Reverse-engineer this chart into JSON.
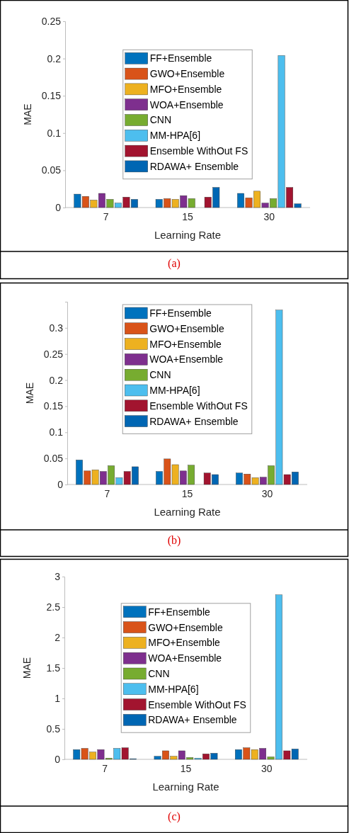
{
  "chart_data": [
    {
      "type": "bar",
      "xlabel": "Learning Rate",
      "ylabel": "MAE",
      "categories": [
        "7",
        "15",
        "30"
      ],
      "ylim": [
        0,
        0.25
      ],
      "yticks": [
        0,
        0.05,
        0.1,
        0.15,
        0.2,
        0.25
      ],
      "legend": "center",
      "annotations": [
        "(a)"
      ],
      "series": [
        {
          "name": "FF+Ensemble",
          "color": "#0072bd",
          "values": [
            0.018,
            0.011,
            0.019
          ]
        },
        {
          "name": "GWO+Ensemble",
          "color": "#d95319",
          "values": [
            0.015,
            0.012,
            0.013
          ]
        },
        {
          "name": "MFO+Ensemble",
          "color": "#edb120",
          "values": [
            0.01,
            0.011,
            0.022
          ]
        },
        {
          "name": "WOA+Ensemble",
          "color": "#7e2f8e",
          "values": [
            0.019,
            0.016,
            0.006
          ]
        },
        {
          "name": "CNN",
          "color": "#77ac30",
          "values": [
            0.011,
            0.012,
            0.012
          ]
        },
        {
          "name": "MM-HPA[6]",
          "color": "#4dbeee",
          "values": [
            0.006,
            null,
            0.204
          ]
        },
        {
          "name": "Ensemble WithOut FS",
          "color": "#a2142f",
          "values": [
            0.014,
            0.014,
            0.027
          ]
        },
        {
          "name": "RDAWA+ Ensemble",
          "color": "#0066b3",
          "values": [
            0.011,
            0.027,
            0.005
          ]
        }
      ]
    },
    {
      "type": "bar",
      "xlabel": "Learning Rate",
      "ylabel": "MAE",
      "categories": [
        "7",
        "15",
        "30"
      ],
      "ylim": [
        0,
        0.35
      ],
      "yticks": [
        0,
        0.05,
        0.1,
        0.15,
        0.2,
        0.25,
        0.3
      ],
      "legend": "top",
      "annotations": [
        "(b)"
      ],
      "series": [
        {
          "name": "FF+Ensemble",
          "color": "#0072bd",
          "values": [
            0.047,
            0.025,
            0.022
          ]
        },
        {
          "name": "GWO+Ensemble",
          "color": "#d95319",
          "values": [
            0.026,
            0.049,
            0.02
          ]
        },
        {
          "name": "MFO+Ensemble",
          "color": "#edb120",
          "values": [
            0.028,
            0.038,
            0.013
          ]
        },
        {
          "name": "WOA+Ensemble",
          "color": "#7e2f8e",
          "values": [
            0.025,
            0.026,
            0.014
          ]
        },
        {
          "name": "CNN",
          "color": "#77ac30",
          "values": [
            0.036,
            0.037,
            0.036
          ]
        },
        {
          "name": "MM-HPA[6]",
          "color": "#4dbeee",
          "values": [
            0.013,
            null,
            0.334
          ]
        },
        {
          "name": "Ensemble WithOut FS",
          "color": "#a2142f",
          "values": [
            0.025,
            0.022,
            0.019
          ]
        },
        {
          "name": "RDAWA+ Ensemble",
          "color": "#0066b3",
          "values": [
            0.034,
            0.019,
            0.024
          ]
        }
      ]
    },
    {
      "type": "bar",
      "xlabel": "Learning Rate",
      "ylabel": "MAE",
      "categories": [
        "7",
        "15",
        "30"
      ],
      "ylim": [
        0,
        3
      ],
      "yticks": [
        0,
        0.5,
        1,
        1.5,
        2,
        2.5,
        3
      ],
      "legend": "center",
      "annotations": [
        "(c)"
      ],
      "series": [
        {
          "name": "FF+Ensemble",
          "color": "#0072bd",
          "values": [
            0.16,
            0.05,
            0.16
          ]
        },
        {
          "name": "GWO+Ensemble",
          "color": "#d95319",
          "values": [
            0.18,
            0.14,
            0.19
          ]
        },
        {
          "name": "MFO+Ensemble",
          "color": "#edb120",
          "values": [
            0.12,
            0.05,
            0.16
          ]
        },
        {
          "name": "WOA+Ensemble",
          "color": "#7e2f8e",
          "values": [
            0.16,
            0.14,
            0.18
          ]
        },
        {
          "name": "CNN",
          "color": "#77ac30",
          "values": [
            0.02,
            0.03,
            0.04
          ]
        },
        {
          "name": "MM-HPA[6]",
          "color": "#4dbeee",
          "values": [
            0.18,
            0.02,
            2.7
          ]
        },
        {
          "name": "Ensemble WithOut FS",
          "color": "#a2142f",
          "values": [
            0.19,
            0.09,
            0.14
          ]
        },
        {
          "name": "RDAWA+ Ensemble",
          "color": "#0066b3",
          "values": [
            0.01,
            0.1,
            0.17
          ]
        }
      ]
    }
  ]
}
